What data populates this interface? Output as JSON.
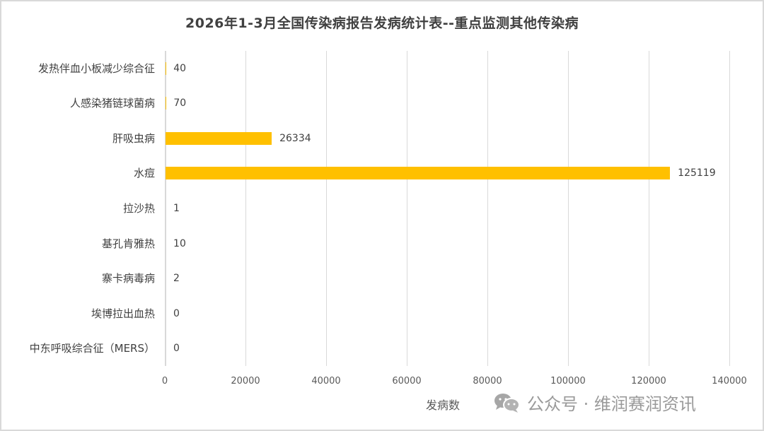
{
  "chart_data": {
    "type": "bar",
    "orientation": "horizontal",
    "title": "2026年1-3月全国传染病报告发病统计表--重点监测其他传染病",
    "categories": [
      "发热伴血小板减少综合征",
      "人感染猪链球菌病",
      "肝吸虫病",
      "水痘",
      "拉沙热",
      "基孔肯雅热",
      "寨卡病毒病",
      "埃博拉出血热",
      "中东呼吸综合征（MERS）"
    ],
    "values": [
      40,
      70,
      26334,
      125119,
      1,
      10,
      2,
      0,
      0
    ],
    "value_labels": [
      "40",
      "70",
      "26334",
      "125119",
      "1",
      "10",
      "2",
      "0",
      "0"
    ],
    "xlabel": "发病数",
    "ylabel": "",
    "xlim": [
      0,
      140000
    ],
    "x_ticks": [
      "0",
      "20000",
      "40000",
      "60000",
      "80000",
      "100000",
      "120000",
      "140000"
    ],
    "grid": true,
    "legend": null,
    "bar_color": "#ffc000"
  },
  "watermark": {
    "text": "公众号 · 维润赛润资讯",
    "icon": "wechat-icon"
  }
}
